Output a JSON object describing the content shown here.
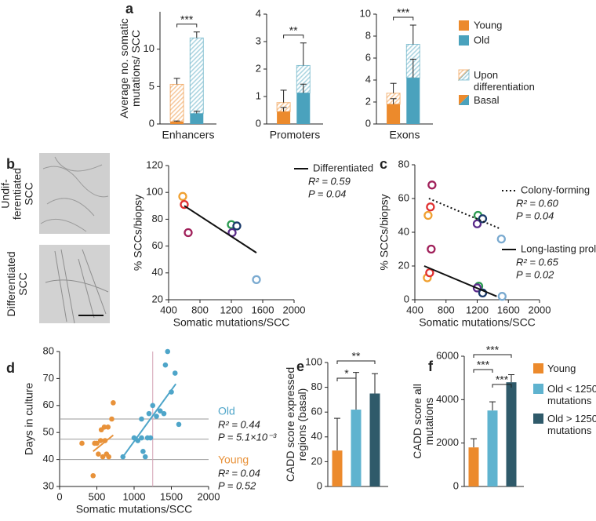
{
  "panel_labels": [
    "a",
    "b",
    "c",
    "d",
    "e",
    "f"
  ],
  "image_labels": [
    "Undif-ferentiated SCC",
    "Differentiated SCC"
  ],
  "chart_data": [
    {
      "type": "stacked_bar",
      "xlabel": "Enhancers",
      "ylabel": "Average no. somatic mutations/ SCC",
      "ylim": [
        0,
        15
      ],
      "yticks": [
        0,
        5,
        10
      ],
      "significance": "***",
      "bars": [
        {
          "color": "#ec8a2c",
          "basal": 0.3,
          "differentiation": 5.0,
          "basal_error": 0.1,
          "total_error": 0.8
        },
        {
          "color": "#4aa2bd",
          "basal": 1.4,
          "differentiation": 10.1,
          "basal_error": 0.3,
          "total_error": 0.8
        }
      ]
    },
    {
      "type": "stacked_bar",
      "xlabel": "Promoters",
      "ylim": [
        0,
        4
      ],
      "yticks": [
        0,
        1,
        2,
        3,
        4
      ],
      "significance": "**",
      "bars": [
        {
          "color": "#ec8a2c",
          "basal": 0.45,
          "differentiation": 0.33,
          "basal_error": 0.15,
          "total_error": 0.45
        },
        {
          "color": "#4aa2bd",
          "basal": 1.13,
          "differentiation": 1.0,
          "basal_error": 0.32,
          "total_error": 0.82
        }
      ]
    },
    {
      "type": "stacked_bar",
      "xlabel": "Exons",
      "ylim": [
        0,
        10
      ],
      "yticks": [
        0,
        2,
        4,
        6,
        8,
        10
      ],
      "significance": "***",
      "bars": [
        {
          "color": "#ec8a2c",
          "basal": 1.8,
          "differentiation": 1.0,
          "basal_error": 0.5,
          "total_error": 0.9
        },
        {
          "color": "#4aa2bd",
          "basal": 4.2,
          "differentiation": 3.05,
          "basal_error": 1.7,
          "total_error": 1.75
        }
      ],
      "legend": [
        {
          "name": "Young",
          "color": "#ec8a2c"
        },
        {
          "name": "Old",
          "color": "#4aa2bd"
        }
      ],
      "fill_legend": [
        "Upon differentiation",
        "Basal"
      ]
    },
    {
      "type": "scatter",
      "xlabel": "Somatic mutations/SCC",
      "ylabel": "% SCCs/biopsy",
      "xlim": [
        400,
        2000
      ],
      "xticks": [
        400,
        800,
        1200,
        1600,
        2000
      ],
      "ylim": [
        20,
        120
      ],
      "yticks": [
        20,
        40,
        60,
        80,
        100,
        120
      ],
      "series": [
        {
          "name": "Differentiated",
          "style": "solid",
          "r2_label": "R² = 0.59",
          "p_label": "P = 0.04",
          "x": [
            580,
            600,
            650,
            1200,
            1210,
            1270,
            1520
          ],
          "y": [
            97,
            91,
            70,
            76,
            70,
            75,
            35
          ],
          "colors": [
            "#f0a030",
            "#e03030",
            "#a0205a",
            "#2a9a50",
            "#5a2a8a",
            "#1a3a6a",
            "#7aaad0"
          ],
          "fit_x": [
            600,
            1520
          ],
          "fit_y": [
            90,
            55
          ]
        }
      ]
    },
    {
      "type": "scatter",
      "xlabel": "Somatic mutations/SCC",
      "ylabel": "% SCCs/biopsy",
      "xlim": [
        400,
        2000
      ],
      "xticks": [
        400,
        800,
        1200,
        1600,
        2000
      ],
      "ylim": [
        0,
        80
      ],
      "yticks": [
        0,
        20,
        40,
        60,
        80
      ],
      "series": [
        {
          "name": "Colony-forming",
          "style": "dotted",
          "r2_label": "R² = 0.60",
          "p_label": "P = 0.04",
          "x": [
            570,
            600,
            620,
            1210,
            1200,
            1270,
            1510
          ],
          "y": [
            50,
            55,
            68,
            50,
            45,
            48,
            36
          ],
          "colors": [
            "#f0a030",
            "#e03030",
            "#a0205a",
            "#2a9a50",
            "#5a2a8a",
            "#1a3a6a",
            "#7aaad0"
          ],
          "fit_x": [
            580,
            1500
          ],
          "fit_y": [
            60,
            42
          ]
        },
        {
          "name": "Long-lasting prolif.",
          "style": "solid",
          "r2_label": "R² = 0.65",
          "p_label": "P = 0.02",
          "x": [
            560,
            590,
            610,
            1220,
            1200,
            1270,
            1520
          ],
          "y": [
            13,
            16,
            30,
            8,
            7,
            4,
            2
          ],
          "colors": [
            "#f0a030",
            "#e03030",
            "#a0205a",
            "#2a9a50",
            "#5a2a8a",
            "#1a3a6a",
            "#7aaad0"
          ],
          "fit_x": [
            520,
            1450
          ],
          "fit_y": [
            20,
            2
          ]
        }
      ]
    },
    {
      "type": "scatter",
      "xlabel": "Somatic mutations/SCC",
      "ylabel": "Days in culture",
      "xlim": [
        0,
        2000
      ],
      "xticks": [
        0,
        500,
        1000,
        1500,
        2000
      ],
      "ylim": [
        30,
        80
      ],
      "yticks": [
        30,
        40,
        50,
        60,
        70,
        80
      ],
      "hlines": [
        40,
        47.5,
        55
      ],
      "vline": 1250,
      "series": [
        {
          "name": "Old",
          "color": "#4ea5c9",
          "style": "solid",
          "r2_label": "R² = 0.44",
          "p_label": "P = 5.1×10⁻³",
          "x": [
            850,
            1000,
            1050,
            1100,
            1100,
            1120,
            1150,
            1180,
            1200,
            1220,
            1250,
            1300,
            1350,
            1400,
            1420,
            1450,
            1500,
            1550,
            1600
          ],
          "y": [
            41,
            48,
            47,
            55,
            48,
            43,
            41,
            48,
            57,
            48,
            60,
            56,
            58,
            57,
            75,
            80,
            65,
            72,
            53
          ],
          "fit_x": [
            850,
            1560
          ],
          "fit_y": [
            41,
            68
          ]
        },
        {
          "name": "Young",
          "color": "#e8923a",
          "style": "solid",
          "r2_label": "R² = 0.04",
          "p_label": "P = 0.52",
          "x": [
            300,
            450,
            470,
            500,
            520,
            550,
            560,
            580,
            600,
            610,
            630,
            650,
            660,
            700,
            720
          ],
          "y": [
            46,
            34,
            46,
            46,
            42,
            47,
            51,
            41,
            52,
            47,
            42,
            52,
            41,
            55,
            61
          ],
          "fit_x": [
            450,
            720
          ],
          "fit_y": [
            43,
            49
          ]
        }
      ]
    },
    {
      "type": "bar",
      "ylabel": "CADD score expressed regions (basal)",
      "ylim": [
        0,
        100
      ],
      "yticks": [
        0,
        20,
        40,
        60,
        80,
        100
      ],
      "values": [
        29,
        62,
        75
      ],
      "errors": [
        26,
        30,
        16
      ],
      "colors": [
        "#ec8a2c",
        "#5fb3cf",
        "#2f5a6a"
      ],
      "significance": [
        {
          "label": "**",
          "from": 0,
          "to": 2
        },
        {
          "label": "*",
          "from": 0,
          "to": 1
        }
      ]
    },
    {
      "type": "bar",
      "ylabel": "CADD score all mutations",
      "ylim": [
        0,
        6000
      ],
      "yticks": [
        0,
        2000,
        4000,
        6000
      ],
      "values": [
        1800,
        3500,
        4800
      ],
      "errors": [
        400,
        400,
        350
      ],
      "colors": [
        "#ec8a2c",
        "#5fb3cf",
        "#2f5a6a"
      ],
      "significance": [
        {
          "label": "***",
          "from": 0,
          "to": 2
        },
        {
          "label": "***",
          "from": 0,
          "to": 1
        },
        {
          "label": "***",
          "from": 1,
          "to": 2
        }
      ],
      "legend": [
        {
          "name": "Young",
          "color": "#ec8a2c"
        },
        {
          "name": "Old < 1250 mutations",
          "color": "#5fb3cf"
        },
        {
          "name": "Old > 1250 mutations",
          "color": "#2f5a6a"
        }
      ]
    }
  ]
}
